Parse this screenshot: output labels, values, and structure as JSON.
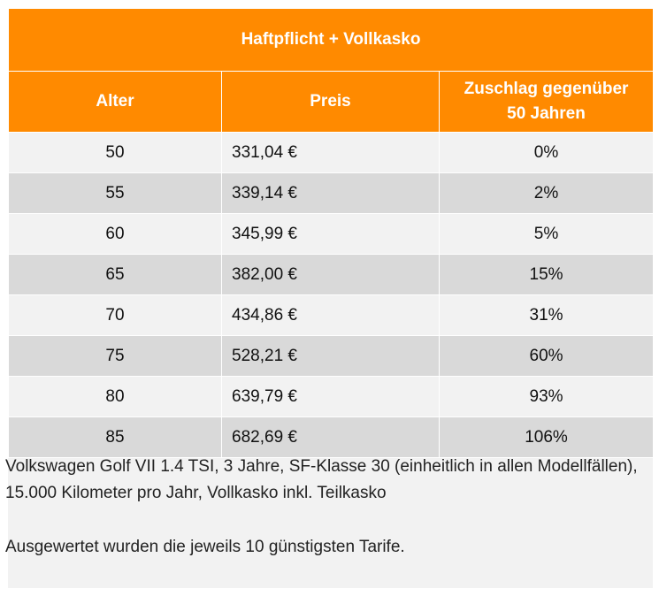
{
  "table": {
    "title": "Haftpflicht + Vollkasko",
    "columns": {
      "age": "Alter",
      "price": "Preis",
      "surcharge_line1": "Zuschlag gegenüber",
      "surcharge_line2": "50 Jahren"
    },
    "rows": [
      {
        "age": "50",
        "price": "331,04 €",
        "surcharge": "0%"
      },
      {
        "age": "55",
        "price": "339,14 €",
        "surcharge": "2%"
      },
      {
        "age": "60",
        "price": "345,99 €",
        "surcharge": "5%"
      },
      {
        "age": "65",
        "price": "382,00 €",
        "surcharge": "15%"
      },
      {
        "age": "70",
        "price": "434,86 €",
        "surcharge": "31%"
      },
      {
        "age": "75",
        "price": "528,21 €",
        "surcharge": "60%"
      },
      {
        "age": "80",
        "price": "639,79 €",
        "surcharge": "93%"
      },
      {
        "age": "85",
        "price": "682,69 €",
        "surcharge": "106%"
      }
    ]
  },
  "notes": {
    "vehicle_info": "Volkswagen Golf VII 1.4 TSI, 3 Jahre, SF-Klasse 30 (einheitlich in allen Modellfällen), 15.000 Kilometer pro Jahr, Vollkasko inkl. Teilkasko",
    "evaluation": "Ausgewertet wurden die jeweils 10 günstigsten Tarife."
  },
  "colors": {
    "header_bg": "#ff8a00",
    "row_light": "#f2f2f2",
    "row_dark": "#d9d9d9"
  }
}
